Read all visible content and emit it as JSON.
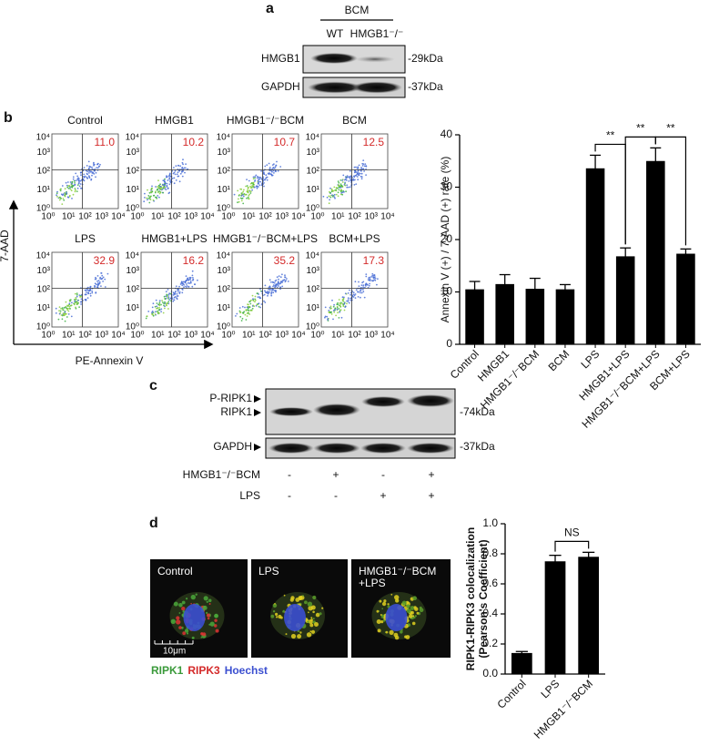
{
  "panel_a": {
    "label": "a",
    "group": "BCM",
    "lanes": [
      "WT",
      "HMGB1⁻/⁻"
    ],
    "rows": [
      {
        "name": "HMGB1",
        "size": "-29kDa"
      },
      {
        "name": "GAPDH",
        "size": "-37kDa"
      }
    ]
  },
  "panel_b": {
    "label": "b",
    "flow": {
      "y_label": "7-AAD",
      "x_label": "PE-Annexin V",
      "axis_ticks": [
        "10⁰",
        "10¹",
        "10²",
        "10³",
        "10⁴"
      ],
      "plots": [
        {
          "title": "Control",
          "value": "11.0"
        },
        {
          "title": "HMGB1",
          "value": "10.2"
        },
        {
          "title": "HMGB1⁻/⁻BCM",
          "value": "10.7"
        },
        {
          "title": "BCM",
          "value": "12.5"
        },
        {
          "title": "LPS",
          "value": "32.9"
        },
        {
          "title": "HMGB1+LPS",
          "value": "16.2"
        },
        {
          "title": "HMGB1⁻/⁻BCM+LPS",
          "value": "35.2"
        },
        {
          "title": "BCM+LPS",
          "value": "17.3"
        }
      ]
    }
  },
  "panel_c": {
    "label": "c",
    "band_labels": [
      "P-RIPK1",
      "RIPK1",
      "GAPDH"
    ],
    "sizes": [
      "-74kDa",
      "-37kDa"
    ],
    "conditions": [
      {
        "name": "HMGB1⁻/⁻BCM",
        "marks": [
          "-",
          "+",
          "-",
          "+"
        ]
      },
      {
        "name": "LPS",
        "marks": [
          "-",
          "-",
          "+",
          "+"
        ]
      }
    ]
  },
  "panel_d": {
    "label": "d",
    "images": [
      [
        "Control"
      ],
      [
        "LPS"
      ],
      [
        "HMGB1⁻/⁻BCM",
        "+LPS"
      ]
    ],
    "scale_bar": "10μm",
    "stains": [
      {
        "name": "RIPK1",
        "color": "#3a9a3a"
      },
      {
        "name": "RIPK3",
        "color": "#d42a2a"
      },
      {
        "name": "Hoechst",
        "color": "#3b4fd0"
      }
    ]
  },
  "chart_data": [
    {
      "type": "bar",
      "y_label": "Annexin V (+) / 7-AAD (+) rate (%)",
      "categories": [
        "Control",
        "HMGB1",
        "HMGB1⁻/⁻BCM",
        "BCM",
        "LPS",
        "HMGB1+LPS",
        "HMGB1⁻/⁻BCM+LPS",
        "BCM+LPS"
      ],
      "values": [
        10.5,
        11.5,
        10.6,
        10.5,
        33.6,
        16.8,
        35.0,
        17.3
      ],
      "errors": [
        1.5,
        1.8,
        2.0,
        0.9,
        2.5,
        1.6,
        2.5,
        0.9
      ],
      "color": "#000000",
      "ylim": [
        0,
        40
      ],
      "yticks": [
        0,
        10,
        20,
        30,
        40
      ],
      "annotations": [
        {
          "text": "**",
          "between": [
            "LPS",
            "HMGB1+LPS"
          ]
        },
        {
          "text": "**",
          "between": [
            "HMGB1+LPS",
            "HMGB1⁻/⁻BCM+LPS"
          ]
        },
        {
          "text": "**",
          "between": [
            "HMGB1⁻/⁻BCM+LPS",
            "BCM+LPS"
          ]
        }
      ]
    },
    {
      "type": "bar",
      "y_label": [
        "RIPK1-RIPK3 colocalization",
        "(Pearson's Coefficient)"
      ],
      "categories": [
        "Control",
        "LPS",
        "HMGB1⁻/⁻BCM"
      ],
      "values": [
        0.14,
        0.75,
        0.78
      ],
      "errors": [
        0.01,
        0.04,
        0.03
      ],
      "color": "#000000",
      "ylim": [
        0,
        1
      ],
      "yticks": [
        {
          "value": 0,
          "label": "0.0"
        },
        0.2,
        0.4,
        0.6,
        0.8,
        {
          "value": 1,
          "label": "1.0"
        }
      ],
      "annotations": [
        {
          "text": "NS",
          "between": [
            "LPS",
            "HMGB1⁻/⁻BCM"
          ]
        }
      ]
    }
  ]
}
